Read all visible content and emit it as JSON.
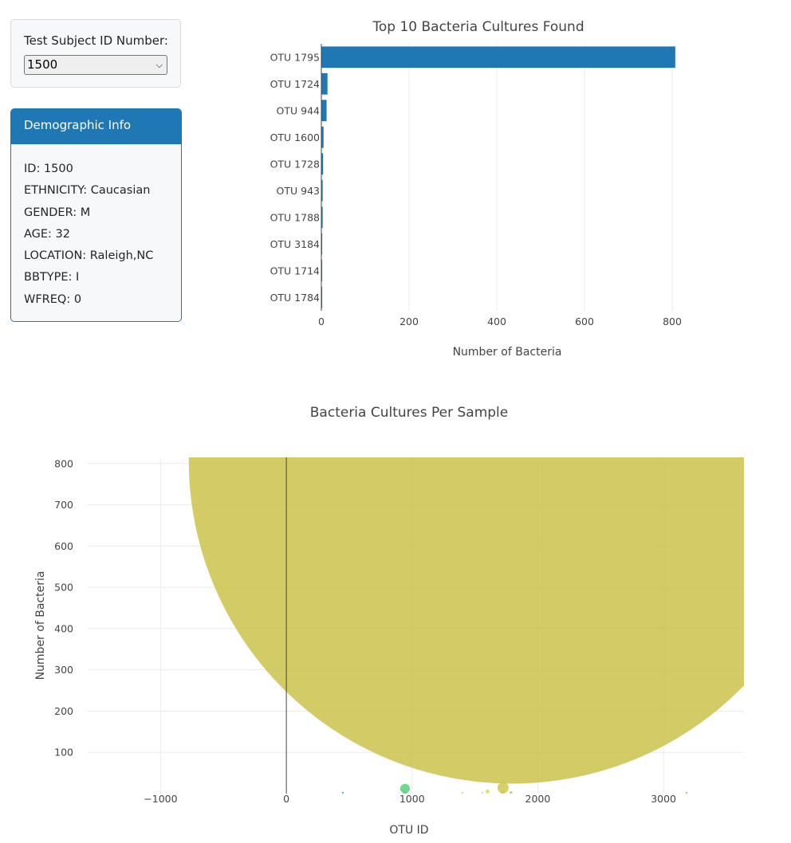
{
  "selector": {
    "label": "Test Subject ID Number:",
    "selected_value": "1500"
  },
  "demographic": {
    "header": "Demographic Info",
    "rows": [
      "ID: 1500",
      "ETHNICITY: Caucasian",
      "GENDER: M",
      "AGE: 32",
      "LOCATION: Raleigh,NC",
      "BBTYPE: I",
      "WFREQ: 0"
    ]
  },
  "colors": {
    "bar": "#1f77b4",
    "header_bg": "#1f77b4",
    "grid": "#ebebeb",
    "text": "#444444",
    "big_bubble": "#c8be40"
  },
  "chart_data": [
    {
      "type": "bar",
      "orientation": "horizontal",
      "title": "Top 10 Bacteria Cultures Found",
      "xlabel": "Number of Bacteria",
      "ylabel": "",
      "categories": [
        "OTU 1795",
        "OTU 1724",
        "OTU 944",
        "OTU 1600",
        "OTU 1728",
        "OTU 943",
        "OTU 1788",
        "OTU 3184",
        "OTU 1714",
        "OTU 1784"
      ],
      "values": [
        807,
        14,
        12,
        5,
        4,
        3,
        3,
        2,
        2,
        2
      ],
      "xlim": [
        0,
        960
      ],
      "xticks": [
        0,
        200,
        400,
        600,
        800
      ],
      "grid": true,
      "legend": "none"
    },
    {
      "type": "scatter",
      "style": "bubble",
      "title": "Bacteria Cultures Per Sample",
      "xlabel": "OTU ID",
      "ylabel": "Number of Bacteria",
      "xlim": [
        -1580,
        3640
      ],
      "ylim": [
        0,
        815
      ],
      "xticks": [
        -1000,
        0,
        1000,
        2000,
        3000
      ],
      "xtick_labels": [
        "−1000",
        "0",
        "1000",
        "2000",
        "3000"
      ],
      "yticks": [
        100,
        200,
        300,
        400,
        500,
        600,
        700,
        800
      ],
      "grid": true,
      "legend": "none",
      "points": [
        {
          "x": 1795,
          "y": 807,
          "size": 807,
          "color": "#c8be40"
        },
        {
          "x": 1724,
          "y": 14,
          "size": 14,
          "color": "#cdc44a"
        },
        {
          "x": 944,
          "y": 12,
          "size": 12,
          "color": "#4ccf6f"
        },
        {
          "x": 1600,
          "y": 5,
          "size": 5,
          "color": "#d6e03a"
        },
        {
          "x": 1728,
          "y": 4,
          "size": 4,
          "color": "#d8c84a"
        },
        {
          "x": 943,
          "y": 3,
          "size": 3,
          "color": "#4ccf6f"
        },
        {
          "x": 1788,
          "y": 3,
          "size": 3,
          "color": "#c8be40"
        },
        {
          "x": 3184,
          "y": 2,
          "size": 2,
          "color": "#d9a040"
        },
        {
          "x": 1714,
          "y": 2,
          "size": 2,
          "color": "#cdc44a"
        },
        {
          "x": 1784,
          "y": 2,
          "size": 2,
          "color": "#c8be40"
        },
        {
          "x": 1400,
          "y": 2,
          "size": 2,
          "color": "#c0e040"
        },
        {
          "x": 450,
          "y": 2,
          "size": 2,
          "color": "#3aa0c8"
        },
        {
          "x": 1560,
          "y": 2,
          "size": 2,
          "color": "#cfe03a"
        }
      ]
    }
  ]
}
